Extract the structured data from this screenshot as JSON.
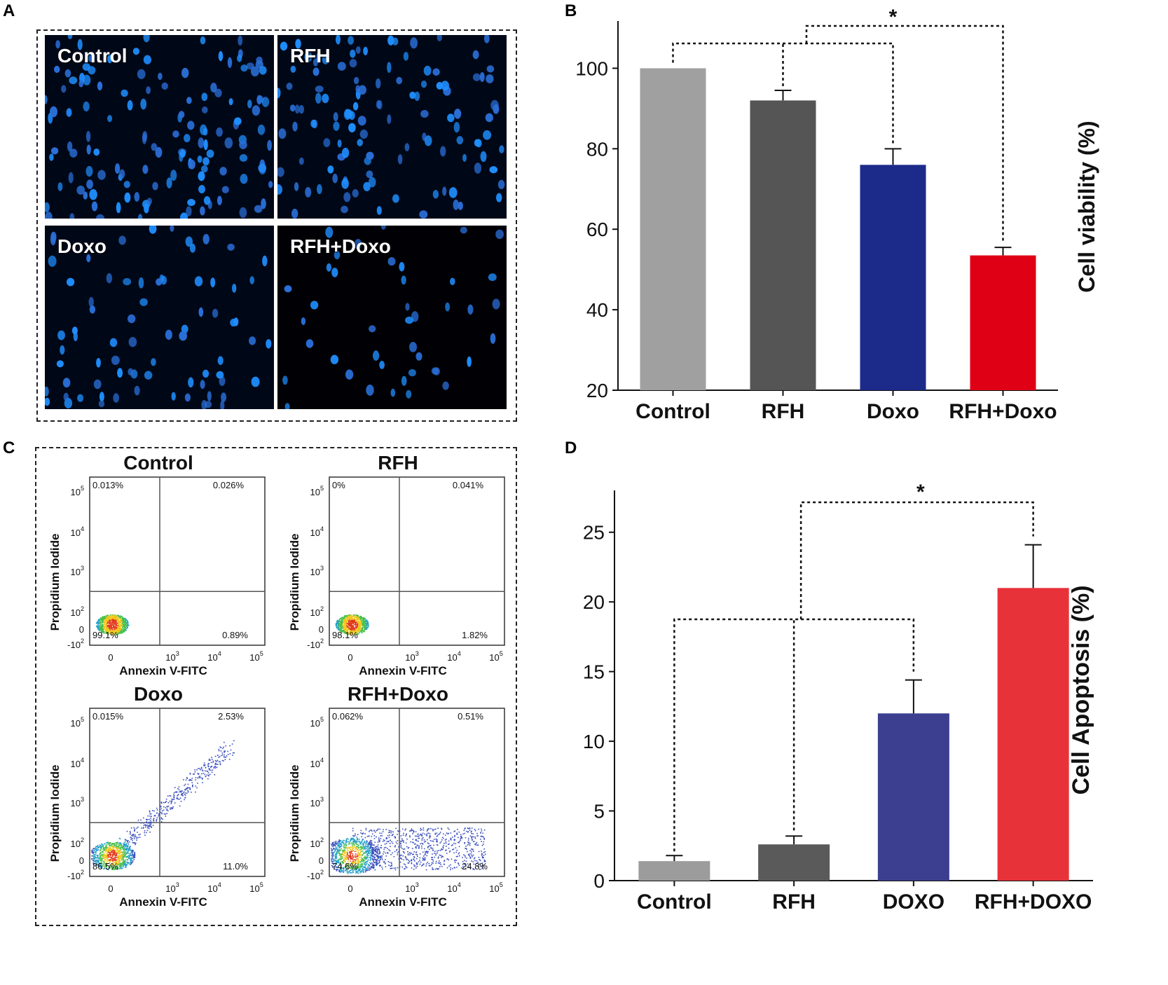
{
  "panels": {
    "a": "A",
    "b": "B",
    "c": "C",
    "d": "D"
  },
  "micro": [
    {
      "label": "Control"
    },
    {
      "label": "RFH"
    },
    {
      "label": "Doxo"
    },
    {
      "label": "RFH+Doxo"
    }
  ],
  "flow": {
    "xlabel": "Annexin V-FITC",
    "ylabel": "Propidium Iodide",
    "yticks": [
      "10^5",
      "10^4",
      "10^3",
      "10^2",
      "0",
      "-10^2"
    ],
    "xticks": [
      "0",
      "10^3",
      "10^4",
      "10^5"
    ],
    "plots": [
      {
        "title": "Control",
        "ul": "0.013%",
        "ur": "0.026%",
        "ll": "99.1%",
        "lr": "0.89%"
      },
      {
        "title": "RFH",
        "ul": "0%",
        "ur": "0.041%",
        "ll": "98.1%",
        "lr": "1.82%"
      },
      {
        "title": "Doxo",
        "ul": "0.015%",
        "ur": "2.53%",
        "ll": "86.5%",
        "lr": "11.0%"
      },
      {
        "title": "RFH+Doxo",
        "ul": "0.062%",
        "ur": "0.51%",
        "ll": "74.6%",
        "lr": "24.8%"
      }
    ]
  },
  "chart_data": [
    {
      "type": "bar",
      "panel": "B",
      "title": "",
      "xlabel": "",
      "ylabel": "Cell viability (%)",
      "categories": [
        "Control",
        "RFH",
        "Doxo",
        "RFH+Doxo"
      ],
      "values": [
        100,
        92,
        76,
        53.5
      ],
      "errors": [
        0,
        2.5,
        4,
        2
      ],
      "colors": [
        "#a0a0a0",
        "#555555",
        "#1c2a8a",
        "#e00015"
      ],
      "ylim": [
        20,
        110
      ],
      "yticks": [
        20,
        40,
        60,
        80,
        100
      ],
      "significance": "*"
    },
    {
      "type": "bar",
      "panel": "D",
      "title": "",
      "xlabel": "",
      "ylabel": "Cell  Apoptosis  (%)",
      "categories": [
        "Control",
        "RFH",
        "DOXO",
        "RFH+DOXO"
      ],
      "values": [
        1.4,
        2.6,
        12,
        21
      ],
      "errors": [
        0.4,
        0.6,
        2.4,
        3.1
      ],
      "colors": [
        "#9c9c9c",
        "#5a5a5a",
        "#3c3f8f",
        "#e8323a"
      ],
      "ylim": [
        0,
        27.5
      ],
      "yticks": [
        0,
        5,
        10,
        15,
        20,
        25
      ],
      "significance": "*"
    }
  ]
}
